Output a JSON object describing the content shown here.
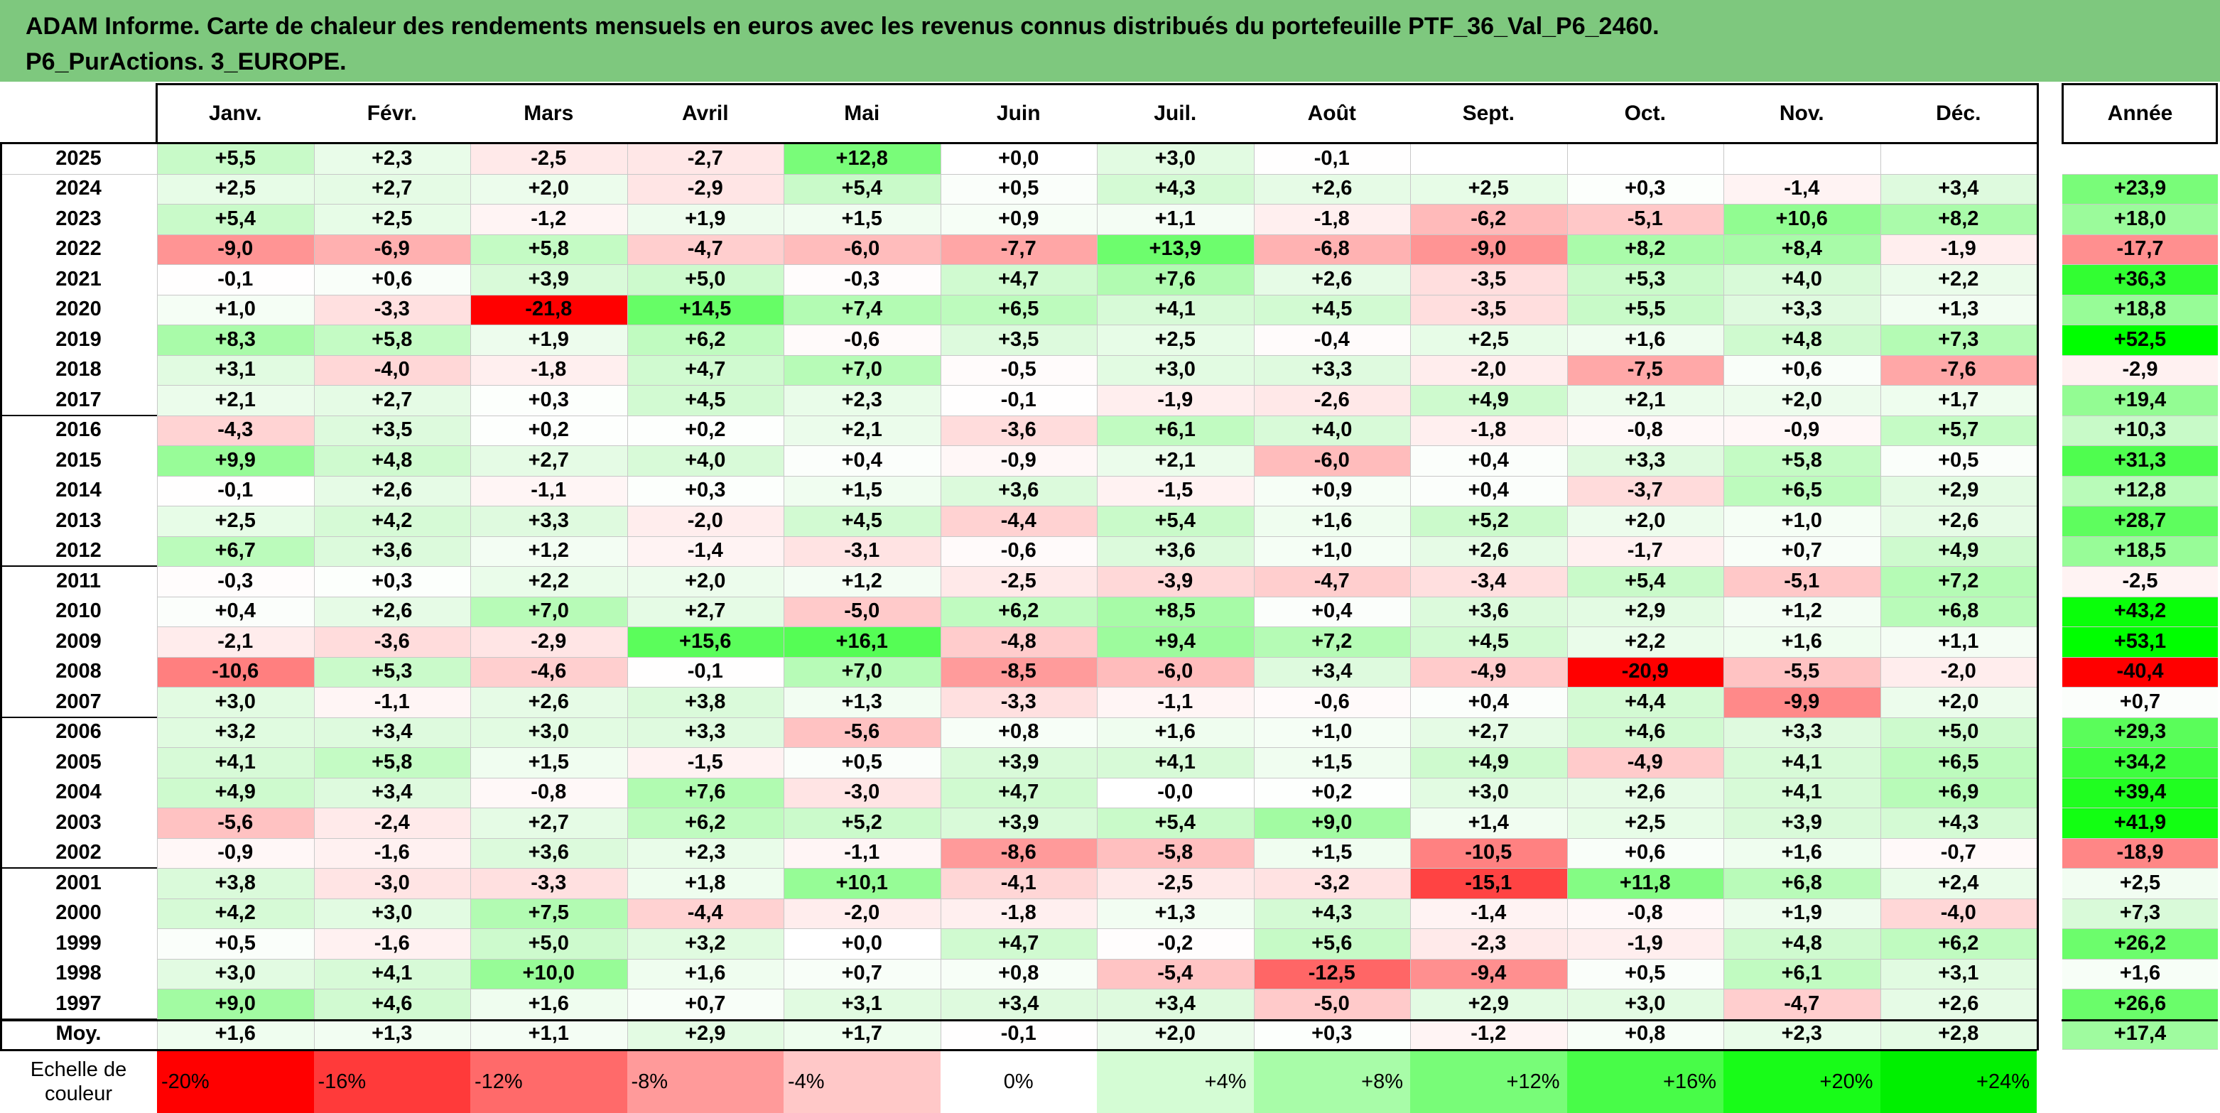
{
  "title_line1": "ADAM Informe. Carte de chaleur des rendements mensuels en euros avec les revenus connus distribués du portefeuille PTF_36_Val_P6_2460.",
  "title_line2": "P6_PurActions. 3_EUROPE.",
  "chart_data": {
    "type": "heatmap",
    "columns": [
      "Janv.",
      "Févr.",
      "Mars",
      "Avril",
      "Mai",
      "Juin",
      "Juil.",
      "Août",
      "Sept.",
      "Oct.",
      "Nov.",
      "Déc."
    ],
    "year_column": "Année",
    "rows": [
      {
        "year": "2025",
        "values": [
          "+5,5",
          "+2,3",
          "-2,5",
          "-2,7",
          "+12,8",
          "+0,0",
          "+3,0",
          "-0,1",
          "",
          "",
          "",
          ""
        ],
        "annual": ""
      },
      {
        "year": "2024",
        "values": [
          "+2,5",
          "+2,7",
          "+2,0",
          "-2,9",
          "+5,4",
          "+0,5",
          "+4,3",
          "+2,6",
          "+2,5",
          "+0,3",
          "-1,4",
          "+3,4"
        ],
        "annual": "+23,9"
      },
      {
        "year": "2023",
        "values": [
          "+5,4",
          "+2,5",
          "-1,2",
          "+1,9",
          "+1,5",
          "+0,9",
          "+1,1",
          "-1,8",
          "-6,2",
          "-5,1",
          "+10,6",
          "+8,2"
        ],
        "annual": "+18,0"
      },
      {
        "year": "2022",
        "values": [
          "-9,0",
          "-6,9",
          "+5,8",
          "-4,7",
          "-6,0",
          "-7,7",
          "+13,9",
          "-6,8",
          "-9,0",
          "+8,2",
          "+8,4",
          "-1,9"
        ],
        "annual": "-17,7"
      },
      {
        "year": "2021",
        "values": [
          "-0,1",
          "+0,6",
          "+3,9",
          "+5,0",
          "-0,3",
          "+4,7",
          "+7,6",
          "+2,6",
          "-3,5",
          "+5,3",
          "+4,0",
          "+2,2"
        ],
        "annual": "+36,3"
      },
      {
        "year": "2020",
        "values": [
          "+1,0",
          "-3,3",
          "-21,8",
          "+14,5",
          "+7,4",
          "+6,5",
          "+4,1",
          "+4,5",
          "-3,5",
          "+5,5",
          "+3,3",
          "+1,3"
        ],
        "annual": "+18,8"
      },
      {
        "year": "2019",
        "values": [
          "+8,3",
          "+5,8",
          "+1,9",
          "+6,2",
          "-0,6",
          "+3,5",
          "+2,5",
          "-0,4",
          "+2,5",
          "+1,6",
          "+4,8",
          "+7,3"
        ],
        "annual": "+52,5"
      },
      {
        "year": "2018",
        "values": [
          "+3,1",
          "-4,0",
          "-1,8",
          "+4,7",
          "+7,0",
          "-0,5",
          "+3,0",
          "+3,3",
          "-2,0",
          "-7,5",
          "+0,6",
          "-7,6"
        ],
        "annual": "-2,9"
      },
      {
        "year": "2017",
        "values": [
          "+2,1",
          "+2,7",
          "+0,3",
          "+4,5",
          "+2,3",
          "-0,1",
          "-1,9",
          "-2,6",
          "+4,9",
          "+2,1",
          "+2,0",
          "+1,7"
        ],
        "annual": "+19,4"
      },
      {
        "year": "2016",
        "values": [
          "-4,3",
          "+3,5",
          "+0,2",
          "+0,2",
          "+2,1",
          "-3,6",
          "+6,1",
          "+4,0",
          "-1,8",
          "-0,8",
          "-0,9",
          "+5,7"
        ],
        "annual": "+10,3"
      },
      {
        "year": "2015",
        "values": [
          "+9,9",
          "+4,8",
          "+2,7",
          "+4,0",
          "+0,4",
          "-0,9",
          "+2,1",
          "-6,0",
          "+0,4",
          "+3,3",
          "+5,8",
          "+0,5"
        ],
        "annual": "+31,3"
      },
      {
        "year": "2014",
        "values": [
          "-0,1",
          "+2,6",
          "-1,1",
          "+0,3",
          "+1,5",
          "+3,6",
          "-1,5",
          "+0,9",
          "+0,4",
          "-3,7",
          "+6,5",
          "+2,9"
        ],
        "annual": "+12,8"
      },
      {
        "year": "2013",
        "values": [
          "+2,5",
          "+4,2",
          "+3,3",
          "-2,0",
          "+4,5",
          "-4,4",
          "+5,4",
          "+1,6",
          "+5,2",
          "+2,0",
          "+1,0",
          "+2,6"
        ],
        "annual": "+28,7"
      },
      {
        "year": "2012",
        "values": [
          "+6,7",
          "+3,6",
          "+1,2",
          "-1,4",
          "-3,1",
          "-0,6",
          "+3,6",
          "+1,0",
          "+2,6",
          "-1,7",
          "+0,7",
          "+4,9"
        ],
        "annual": "+18,5"
      },
      {
        "year": "2011",
        "values": [
          "-0,3",
          "+0,3",
          "+2,2",
          "+2,0",
          "+1,2",
          "-2,5",
          "-3,9",
          "-4,7",
          "-3,4",
          "+5,4",
          "-5,1",
          "+7,2"
        ],
        "annual": "-2,5"
      },
      {
        "year": "2010",
        "values": [
          "+0,4",
          "+2,6",
          "+7,0",
          "+2,7",
          "-5,0",
          "+6,2",
          "+8,5",
          "+0,4",
          "+3,6",
          "+2,9",
          "+1,2",
          "+6,8"
        ],
        "annual": "+43,2"
      },
      {
        "year": "2009",
        "values": [
          "-2,1",
          "-3,6",
          "-2,9",
          "+15,6",
          "+16,1",
          "-4,8",
          "+9,4",
          "+7,2",
          "+4,5",
          "+2,2",
          "+1,6",
          "+1,1"
        ],
        "annual": "+53,1"
      },
      {
        "year": "2008",
        "values": [
          "-10,6",
          "+5,3",
          "-4,6",
          "-0,1",
          "+7,0",
          "-8,5",
          "-6,0",
          "+3,4",
          "-4,9",
          "-20,9",
          "-5,5",
          "-2,0"
        ],
        "annual": "-40,4"
      },
      {
        "year": "2007",
        "values": [
          "+3,0",
          "-1,1",
          "+2,6",
          "+3,8",
          "+1,3",
          "-3,3",
          "-1,1",
          "-0,6",
          "+0,4",
          "+4,4",
          "-9,9",
          "+2,0"
        ],
        "annual": "+0,7"
      },
      {
        "year": "2006",
        "values": [
          "+3,2",
          "+3,4",
          "+3,0",
          "+3,3",
          "-5,6",
          "+0,8",
          "+1,6",
          "+1,0",
          "+2,7",
          "+4,6",
          "+3,3",
          "+5,0"
        ],
        "annual": "+29,3"
      },
      {
        "year": "2005",
        "values": [
          "+4,1",
          "+5,8",
          "+1,5",
          "-1,5",
          "+0,5",
          "+3,9",
          "+4,1",
          "+1,5",
          "+4,9",
          "-4,9",
          "+4,1",
          "+6,5"
        ],
        "annual": "+34,2"
      },
      {
        "year": "2004",
        "values": [
          "+4,9",
          "+3,4",
          "-0,8",
          "+7,6",
          "-3,0",
          "+4,7",
          "-0,0",
          "+0,2",
          "+3,0",
          "+2,6",
          "+4,1",
          "+6,9"
        ],
        "annual": "+39,4"
      },
      {
        "year": "2003",
        "values": [
          "-5,6",
          "-2,4",
          "+2,7",
          "+6,2",
          "+5,2",
          "+3,9",
          "+5,4",
          "+9,0",
          "+1,4",
          "+2,5",
          "+3,9",
          "+4,3"
        ],
        "annual": "+41,9"
      },
      {
        "year": "2002",
        "values": [
          "-0,9",
          "-1,6",
          "+3,6",
          "+2,3",
          "-1,1",
          "-8,6",
          "-5,8",
          "+1,5",
          "-10,5",
          "+0,6",
          "+1,6",
          "-0,7"
        ],
        "annual": "-18,9"
      },
      {
        "year": "2001",
        "values": [
          "+3,8",
          "-3,0",
          "-3,3",
          "+1,8",
          "+10,1",
          "-4,1",
          "-2,5",
          "-3,2",
          "-15,1",
          "+11,8",
          "+6,8",
          "+2,4"
        ],
        "annual": "+2,5"
      },
      {
        "year": "2000",
        "values": [
          "+4,2",
          "+3,0",
          "+7,5",
          "-4,4",
          "-2,0",
          "-1,8",
          "+1,3",
          "+4,3",
          "-1,4",
          "-0,8",
          "+1,9",
          "-4,0"
        ],
        "annual": "+7,3"
      },
      {
        "year": "1999",
        "values": [
          "+0,5",
          "-1,6",
          "+5,0",
          "+3,2",
          "+0,0",
          "+4,7",
          "-0,2",
          "+5,6",
          "-2,3",
          "-1,9",
          "+4,8",
          "+6,2"
        ],
        "annual": "+26,2"
      },
      {
        "year": "1998",
        "values": [
          "+3,0",
          "+4,1",
          "+10,0",
          "+1,6",
          "+0,7",
          "+0,8",
          "-5,4",
          "-12,5",
          "-9,4",
          "+0,5",
          "+6,1",
          "+3,1"
        ],
        "annual": "+1,6"
      },
      {
        "year": "1997",
        "values": [
          "+9,0",
          "+4,6",
          "+1,6",
          "+0,7",
          "+3,1",
          "+3,4",
          "+3,4",
          "-5,0",
          "+2,9",
          "+3,0",
          "-4,7",
          "+2,6"
        ],
        "annual": "+26,6"
      }
    ],
    "average": {
      "label": "Moy.",
      "values": [
        "+1,6",
        "+1,3",
        "+1,1",
        "+2,9",
        "+1,7",
        "-0,1",
        "+2,0",
        "+0,3",
        "-1,2",
        "+0,8",
        "+2,3",
        "+2,8"
      ],
      "annual": "+17,4"
    },
    "scale": {
      "label_line1": "Echelle de",
      "label_line2": "couleur",
      "steps": [
        "-20%",
        "-16%",
        "-12%",
        "-8%",
        "-4%",
        "0%",
        "+4%",
        "+8%",
        "+12%",
        "+16%",
        "+20%",
        "+24%"
      ]
    }
  }
}
